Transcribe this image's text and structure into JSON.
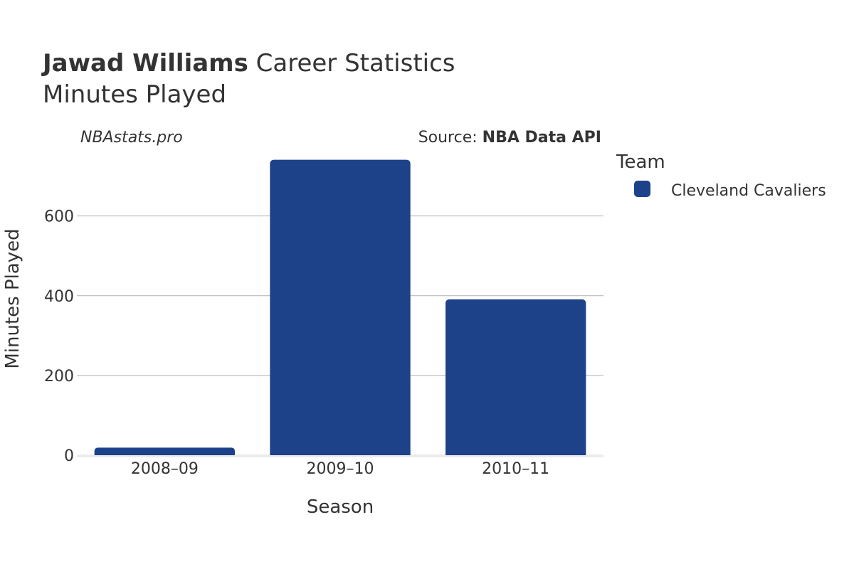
{
  "header": {
    "player_name": "Jawad Williams",
    "title_suffix": " Career Statistics",
    "subtitle": "Minutes Played"
  },
  "annotations": {
    "site": "NBAstats.pro",
    "source_prefix": "Source: ",
    "source_name": "NBA Data API"
  },
  "legend": {
    "title": "Team",
    "items": [
      {
        "label": "Cleveland Cavaliers",
        "color": "#1d428a"
      }
    ]
  },
  "colors": {
    "bar": "#1d428a",
    "grid": "#b0b0b0",
    "zero_line": "#ebebeb"
  },
  "chart_data": {
    "type": "bar",
    "title": "Jawad Williams Career Statistics",
    "subtitle": "Minutes Played",
    "xlabel": "Season",
    "ylabel": "Minutes Played",
    "categories": [
      "2008–09",
      "2009–10",
      "2010–11"
    ],
    "series": [
      {
        "name": "Cleveland Cavaliers",
        "values": [
          19,
          741,
          391
        ]
      }
    ],
    "ylim": [
      0,
      760
    ],
    "yticks": [
      0,
      200,
      400,
      600
    ],
    "grid": true,
    "legend_position": "top-right"
  }
}
